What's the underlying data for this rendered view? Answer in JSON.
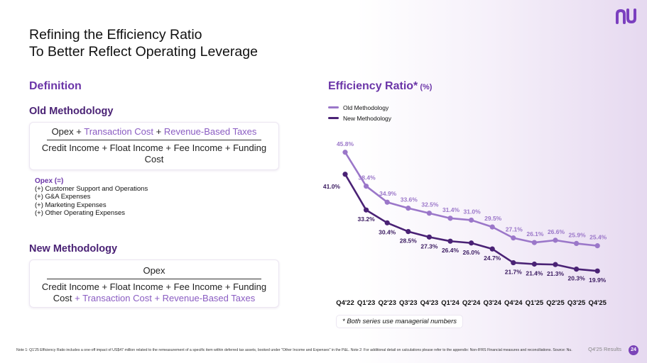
{
  "title": {
    "line1": "Refining the Efficiency Ratio",
    "line2": "To Better Reflect Operating Leverage"
  },
  "definition": {
    "heading": "Definition",
    "old": {
      "heading": "Old Methodology",
      "numerator": {
        "opex": "Opex",
        "plus1": " + ",
        "transaction_cost": "Transaction Cost",
        "plus2": " + ",
        "revenue_based_taxes": "Revenue-Based Taxes"
      },
      "denominator": "Credit Income + Float Income + Fee Income + Funding Cost"
    },
    "opex_list": {
      "head": "Opex (=)",
      "items": [
        "(+) Customer Support and Operations",
        "(+) G&A Expenses",
        "(+) Marketing Expenses",
        "(+) Other Operating Expenses"
      ]
    },
    "new": {
      "heading": "New Methodology",
      "numerator": "Opex",
      "denominator_dark": "Credit Income + Float Income + Fee Income + Funding Cost",
      "denominator_purple": " + Transaction Cost + Revenue-Based Taxes"
    }
  },
  "chart_title": {
    "main": "Efficiency Ratio*",
    "unit": " (%)"
  },
  "chart_data": {
    "type": "line",
    "title": "Efficiency Ratio* (%)",
    "categories": [
      "Q4'22",
      "Q1'23",
      "Q2'23",
      "Q3'23",
      "Q4'23",
      "Q1'24",
      "Q2'24",
      "Q3'24",
      "Q4'24",
      "Q1'25",
      "Q2'25",
      "Q3'25",
      "Q4'25"
    ],
    "series": [
      {
        "name": "Old Methodology",
        "color": "#9b77c9",
        "values": [
          45.8,
          38.4,
          34.9,
          33.6,
          32.5,
          31.4,
          31.0,
          29.5,
          27.1,
          26.1,
          26.6,
          25.9,
          25.4
        ]
      },
      {
        "name": "New Methodology",
        "color": "#4a2275",
        "values": [
          41.0,
          33.2,
          30.4,
          28.5,
          27.3,
          26.4,
          26.0,
          24.7,
          21.7,
          21.4,
          21.3,
          20.3,
          19.9
        ]
      }
    ],
    "labels": {
      "old": [
        "45.8%",
        "38.4%",
        "34.9%",
        "33.6%",
        "32.5%",
        "31.4%",
        "31.0%",
        "29.5%",
        "27.1%",
        "26.1%",
        "26.6%",
        "25.9%",
        "25.4%"
      ],
      "new": [
        "41.0%",
        "33.2%",
        "30.4%",
        "28.5%",
        "27.3%",
        "26.4%",
        "26.0%",
        "24.7%",
        "21.7%",
        "21.4%",
        "21.3%",
        "20.3%",
        "19.9%"
      ]
    },
    "ylim": [
      19,
      47
    ],
    "legend_position": "top-left",
    "grid": false
  },
  "note_badge": "* Both series use managerial numbers",
  "footnote": "Note 1: Q1'25 Efficiency Ratio includes a one-off impact of US$47 million related to the remeasurement of a specific item within deferred tax assets, booked under \"Other Income and Expenses\" in the P&L. Note 2: For additional detail on calculations please refer to the appendix: Non-IFRS Financial measures and reconciliations. Source: Nu.",
  "page": {
    "label": "Q4'25 Results",
    "number": "24"
  },
  "colors": {
    "brand": "#6b35a8",
    "old_series": "#9b77c9",
    "new_series": "#4a2275"
  }
}
